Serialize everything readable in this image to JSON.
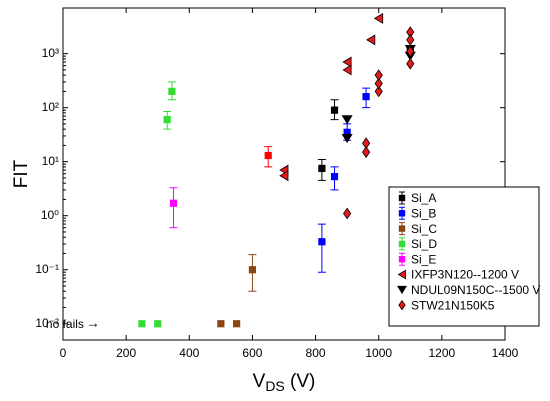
{
  "chart_data": {
    "type": "scatter",
    "ylabel": "FIT",
    "xlabel": [
      "V",
      "DS",
      " (V)"
    ],
    "annotation": "no fails",
    "annotation_arrow": "→",
    "annotation_x": 250,
    "annotation_y": 0.01,
    "xlim": [
      0,
      1400
    ],
    "xticks": [
      0,
      200,
      400,
      600,
      800,
      1000,
      1200,
      1400
    ],
    "ylim": [
      0.005,
      7000
    ],
    "log_y": true,
    "yticks": [
      {
        "value": 0.01,
        "label": "10⁻²"
      },
      {
        "value": 0.1,
        "label": "10⁻¹"
      },
      {
        "value": 1,
        "label": "10⁰"
      },
      {
        "value": 10,
        "label": "10¹"
      },
      {
        "value": 100,
        "label": "10²"
      },
      {
        "value": 1000,
        "label": "10³"
      }
    ],
    "legend": "lower right",
    "series": [
      {
        "name": "Si_A",
        "marker": "square",
        "color": "#000000",
        "x": [
          820,
          860,
          1100
        ],
        "values": [
          7.5,
          90,
          1100
        ],
        "err_low": [
          4.5,
          60,
          null
        ],
        "err_high": [
          11,
          140,
          null
        ]
      },
      {
        "name": "Si_B",
        "marker": "square",
        "color": "#0000ff",
        "x": [
          820,
          860,
          900,
          960
        ],
        "values": [
          0.33,
          5.3,
          35,
          160
        ],
        "err_low": [
          0.09,
          3,
          25,
          100
        ],
        "err_high": [
          0.7,
          8,
          50,
          230
        ]
      },
      {
        "name": "Si_C",
        "marker": "square",
        "color": "#8b4513",
        "x": [
          600,
          500,
          550
        ],
        "values": [
          0.1,
          0.01,
          0.01
        ],
        "err_low": [
          0.04,
          null,
          null
        ],
        "err_high": [
          0.19,
          null,
          null
        ]
      },
      {
        "name": "Si_D",
        "marker": "square",
        "color": "#33dd33",
        "x": [
          330,
          345,
          250,
          300
        ],
        "values": [
          60,
          200,
          0.01,
          0.01
        ],
        "err_low": [
          40,
          140,
          null,
          null
        ],
        "err_high": [
          85,
          300,
          null,
          null
        ]
      },
      {
        "name": "Si_E",
        "marker": "square",
        "color": "#ff00ff",
        "colors": [
          "#ff00ff",
          "#ff0000"
        ],
        "x": [
          350,
          650
        ],
        "values": [
          1.7,
          13
        ],
        "err_low": [
          0.6,
          8
        ],
        "err_high": [
          3.3,
          19
        ]
      },
      {
        "name": "IXFP3N120--1200 V",
        "marker": "triangle-left",
        "color": "#e31a1c",
        "x": [
          700,
          700,
          900,
          900,
          975,
          1000
        ],
        "values": [
          7,
          5.5,
          700,
          500,
          1800,
          4500
        ]
      },
      {
        "name": "NDUL09N150C--1500 V",
        "marker": "triangle-down",
        "color": "#000000",
        "x": [
          900,
          900,
          1100,
          1100
        ],
        "values": [
          60,
          27,
          1200,
          900
        ]
      },
      {
        "name": "STW21N150K5",
        "marker": "diamond",
        "color": "#e31a1c",
        "x": [
          900,
          960,
          960,
          1000,
          1000,
          1000,
          1100,
          1100,
          1100,
          1100
        ],
        "values": [
          1.1,
          22,
          15,
          200,
          280,
          400,
          2500,
          1800,
          1100,
          650
        ]
      }
    ]
  }
}
